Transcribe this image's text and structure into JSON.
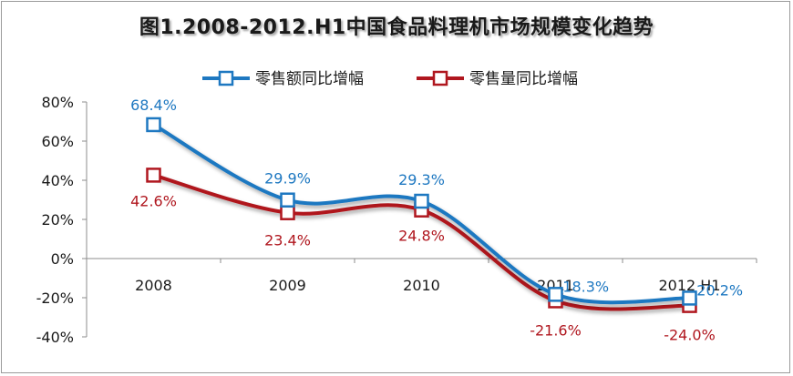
{
  "chart_data": {
    "type": "line",
    "title": "图1.2008-2012.H1中国食品料理机市场规模变化趋势",
    "categories": [
      "2008",
      "2009",
      "2010",
      "2011",
      "2012 H1"
    ],
    "series": [
      {
        "name": "零售额同比增幅",
        "values": [
          68.4,
          29.9,
          29.3,
          -18.3,
          -20.2
        ],
        "labels": [
          "68.4%",
          "29.9%",
          "29.3%",
          "-18.3%",
          "-20.2%"
        ],
        "color": "#1e78c1"
      },
      {
        "name": "零售量同比增幅",
        "values": [
          42.6,
          23.4,
          24.8,
          -21.6,
          -24.0
        ],
        "labels": [
          "42.6%",
          "23.4%",
          "24.8%",
          "-21.6%",
          "-24.0%"
        ],
        "color": "#b0171f"
      }
    ],
    "ylim": [
      -40,
      80
    ],
    "yticks": [
      "80%",
      "60%",
      "40%",
      "20%",
      "0%",
      "-20%",
      "-40%"
    ],
    "ytick_values": [
      80,
      60,
      40,
      20,
      0,
      -20,
      -40
    ],
    "legend": "top",
    "grid": false
  }
}
